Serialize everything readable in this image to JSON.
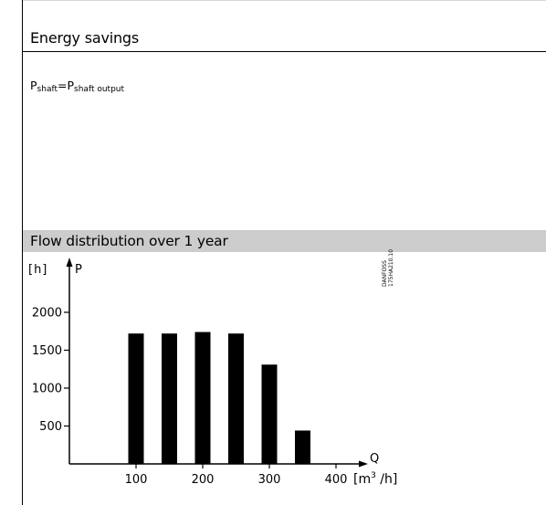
{
  "document": {
    "heading": "Energy savings",
    "formula": {
      "lhs_symbol": "P",
      "lhs_sub": "shaft",
      "equals": "=",
      "rhs_symbol": "P",
      "rhs_sub": "shaft output"
    },
    "figure_caption": "Flow distribution over 1 year",
    "figure_code_line1": "DANFOSS",
    "figure_code_line2": "175HA210.10"
  },
  "chart_data": {
    "type": "bar",
    "title": "Flow distribution over 1 year",
    "y_unit": "[h]",
    "y_symbol": "P",
    "x_symbol": "Q",
    "x_unit_base": "[m",
    "x_unit_sup": "3",
    "x_unit_tail": " /h]",
    "x_ticks": [
      "100",
      "200",
      "300",
      "400"
    ],
    "y_ticks": [
      "500",
      "1000",
      "1500",
      "2000"
    ],
    "x": [
      100,
      150,
      200,
      250,
      300,
      350
    ],
    "values": [
      1720,
      1720,
      1740,
      1720,
      1310,
      440
    ],
    "xlim": [
      0,
      450
    ],
    "ylim": [
      0,
      2300
    ],
    "grid": false,
    "bar_color": "#000000"
  }
}
